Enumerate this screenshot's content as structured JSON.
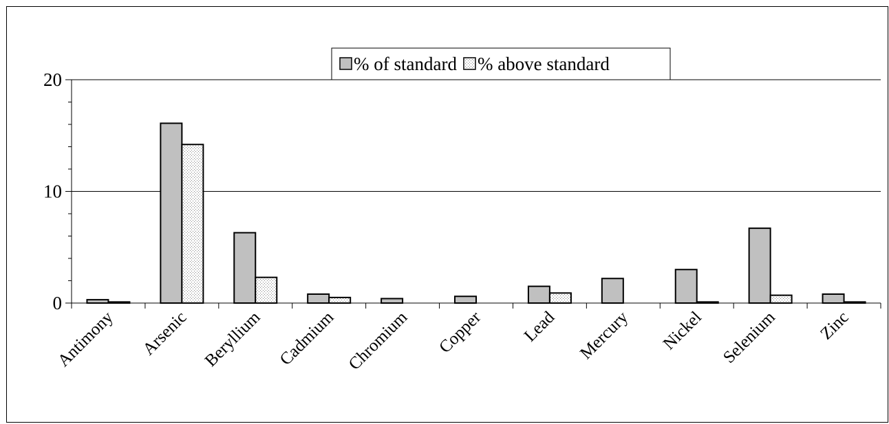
{
  "chart_data": {
    "type": "bar",
    "title": "",
    "xlabel": "",
    "ylabel": "",
    "categories": [
      "Antimony",
      "Arsenic",
      "Beryllium",
      "Cadmium",
      "Chromium",
      "Copper",
      "Lead",
      "Mercury",
      "Nickel",
      "Selenium",
      "Zinc"
    ],
    "series": [
      {
        "name": "% of standard",
        "color": "#c0c0c0",
        "pattern": "solid",
        "values": [
          0.3,
          16.1,
          6.3,
          0.8,
          0.4,
          0.6,
          1.5,
          2.2,
          3.0,
          6.7,
          0.8
        ]
      },
      {
        "name": "% above standard",
        "color": "#ffffff",
        "pattern": "dotted",
        "values": [
          0.1,
          14.2,
          2.3,
          0.5,
          0,
          0,
          0.9,
          0,
          0.1,
          0.7,
          0.1
        ]
      }
    ],
    "ylim": [
      0,
      20
    ],
    "yticks": [
      "0",
      "10",
      "20"
    ],
    "yticks_values": [
      0,
      10,
      20
    ],
    "minor_tick_step": 2,
    "grid": "horizontal at major ticks",
    "legend_position": "top-center",
    "bar_outline_color": "#000000"
  }
}
